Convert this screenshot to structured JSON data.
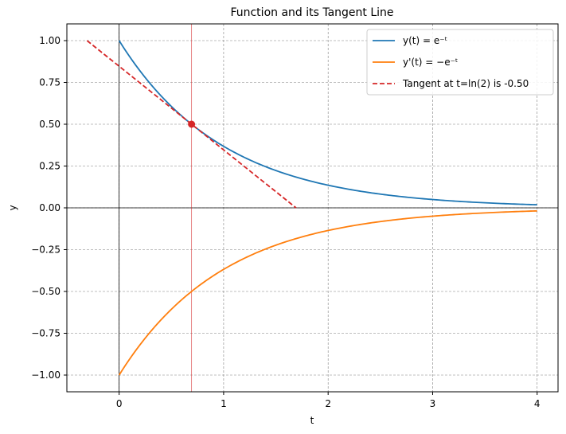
{
  "chart_data": {
    "type": "line",
    "title": "Function and its Tangent Line",
    "xlabel": "t",
    "ylabel": "y",
    "xlim": [
      -0.5,
      4.2
    ],
    "ylim": [
      -1.1,
      1.1
    ],
    "xticks": [
      0,
      1,
      2,
      3,
      4
    ],
    "xtick_labels": [
      "0",
      "1",
      "2",
      "3",
      "4"
    ],
    "yticks": [
      -1.0,
      -0.75,
      -0.5,
      -0.25,
      0.0,
      0.25,
      0.5,
      0.75,
      1.0
    ],
    "ytick_labels": [
      "−1.00",
      "−0.75",
      "−0.50",
      "−0.25",
      "0.00",
      "0.25",
      "0.50",
      "0.75",
      "1.00"
    ],
    "grid": true,
    "legend_position": "top-right",
    "series": [
      {
        "name": "y(t) = e⁻ᵗ",
        "color": "#1f77b4",
        "style": "solid",
        "x": [
          0,
          0.25,
          0.5,
          0.6931,
          1.0,
          1.25,
          1.5,
          1.75,
          2.0,
          2.5,
          3.0,
          3.5,
          4.0
        ],
        "y": [
          1.0,
          0.7788,
          0.6065,
          0.5,
          0.3679,
          0.2865,
          0.2231,
          0.1738,
          0.1353,
          0.0821,
          0.0498,
          0.0302,
          0.0183
        ]
      },
      {
        "name": "y'(t) = −e⁻ᵗ",
        "color": "#ff7f0e",
        "style": "solid",
        "x": [
          0,
          0.25,
          0.5,
          0.6931,
          1.0,
          1.25,
          1.5,
          1.75,
          2.0,
          2.5,
          3.0,
          3.5,
          4.0
        ],
        "y": [
          -1.0,
          -0.7788,
          -0.6065,
          -0.5,
          -0.3679,
          -0.2865,
          -0.2231,
          -0.1738,
          -0.1353,
          -0.0821,
          -0.0498,
          -0.0302,
          -0.0183
        ]
      },
      {
        "name": "Tangent at t=ln(2) is -0.50",
        "color": "#d62728",
        "style": "dashed",
        "x": [
          -0.3069,
          1.6931
        ],
        "y": [
          1.0,
          0.0
        ]
      }
    ],
    "tangent_point": {
      "x": 0.6931,
      "y": 0.5,
      "color": "#d62728"
    },
    "vertical_line": {
      "x": 0.6931,
      "color": "#d62728"
    },
    "axis_lines": {
      "x": 0,
      "y": 0,
      "color": "#000000"
    },
    "grid_color": "#808080"
  }
}
